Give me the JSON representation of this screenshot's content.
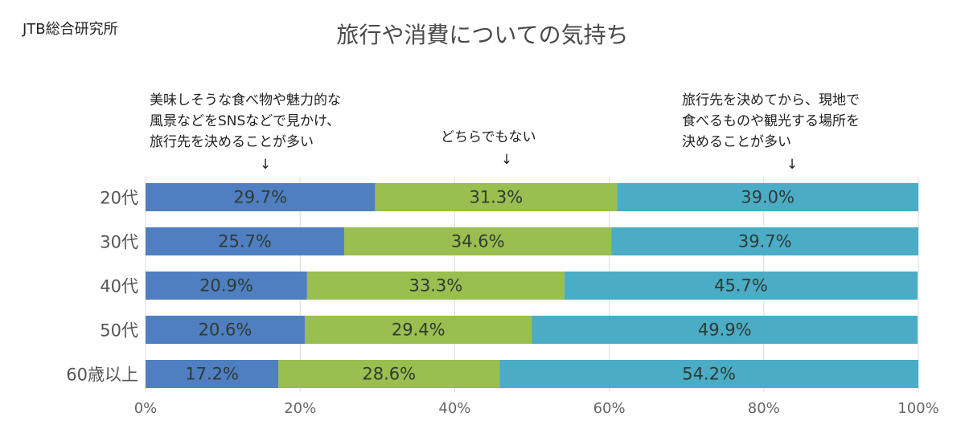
{
  "source": "JTB総合研究所",
  "chart_data": {
    "type": "bar",
    "orientation": "horizontal",
    "stacked": true,
    "title": "旅行や消費についての気持ち",
    "categories": [
      "20代",
      "30代",
      "40代",
      "50代",
      "60歳以上"
    ],
    "series": [
      {
        "name_lines": [
          "美味しそうな食べ物や魅力的な",
          "風景などをSNSなどで見かけ、",
          "旅行先を決めることが多い"
        ],
        "values": [
          29.7,
          25.7,
          20.9,
          20.6,
          17.2
        ],
        "color": "#4f7fc1"
      },
      {
        "name_lines": [
          "どちらでもない"
        ],
        "values": [
          31.3,
          34.6,
          33.3,
          29.4,
          28.6
        ],
        "color": "#9abe4f"
      },
      {
        "name_lines": [
          "旅行先を決めてから、現地で",
          "食べるものや観光する場所を",
          "決めることが多い"
        ],
        "values": [
          39.0,
          39.7,
          45.7,
          49.9,
          54.2
        ],
        "color": "#4bacc6"
      }
    ],
    "value_labels": [
      [
        "29.7%",
        "31.3%",
        "39.0%"
      ],
      [
        "25.7%",
        "34.6%",
        "39.7%"
      ],
      [
        "20.9%",
        "33.3%",
        "45.7%"
      ],
      [
        "20.6%",
        "29.4%",
        "49.9%"
      ],
      [
        "17.2%",
        "28.6%",
        "54.2%"
      ]
    ],
    "arrow": "↓",
    "xlim": [
      0,
      100
    ],
    "xticks": [
      "0%",
      "20%",
      "40%",
      "60%",
      "80%",
      "100%"
    ],
    "grid": true
  }
}
